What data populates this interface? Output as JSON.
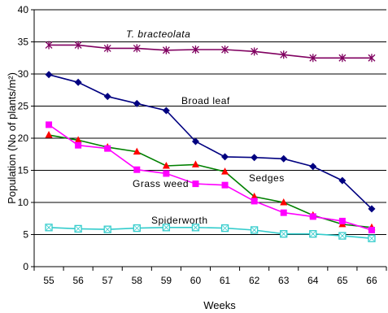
{
  "chart_data": {
    "type": "line",
    "title": "",
    "xlabel": "Weeks",
    "ylabel": "Population (No of plants/m²)",
    "x": [
      55,
      56,
      57,
      58,
      59,
      60,
      61,
      62,
      63,
      64,
      65,
      66
    ],
    "xlim": [
      54.5,
      66.5
    ],
    "ylim": [
      0,
      40
    ],
    "yticks": [
      0,
      5,
      10,
      15,
      20,
      25,
      30,
      35,
      40
    ],
    "grid": "horizontal",
    "series": [
      {
        "name": "T. bracteolata",
        "color": "#800060",
        "marker": "asterisk",
        "values": [
          34.5,
          34.5,
          34.0,
          34.0,
          33.7,
          33.8,
          33.8,
          33.5,
          33.0,
          32.5,
          32.5,
          32.5
        ]
      },
      {
        "name": "Broad leaf",
        "color": "#000080",
        "marker": "diamond",
        "values": [
          29.9,
          28.7,
          26.5,
          25.4,
          24.3,
          19.5,
          17.1,
          17.0,
          16.8,
          15.6,
          13.4,
          9.0
        ]
      },
      {
        "name": "Sedges",
        "color": "#008000",
        "marker": "triangle",
        "marker_color": "#ff0000",
        "values": [
          20.5,
          19.7,
          18.6,
          17.9,
          15.7,
          15.9,
          14.8,
          10.9,
          10.0,
          8.0,
          6.6,
          6.1
        ]
      },
      {
        "name": "Grass weed",
        "color": "#ff00ff",
        "marker": "square",
        "values": [
          22.1,
          18.9,
          18.4,
          15.1,
          14.5,
          12.9,
          12.7,
          10.2,
          8.4,
          7.8,
          7.1,
          5.7
        ]
      },
      {
        "name": "Spiderworth",
        "color": "#33cccc",
        "marker": "square-open",
        "values": [
          6.1,
          5.9,
          5.8,
          6.0,
          6.1,
          6.1,
          6.0,
          5.7,
          5.1,
          5.1,
          4.8,
          4.4
        ]
      }
    ]
  }
}
